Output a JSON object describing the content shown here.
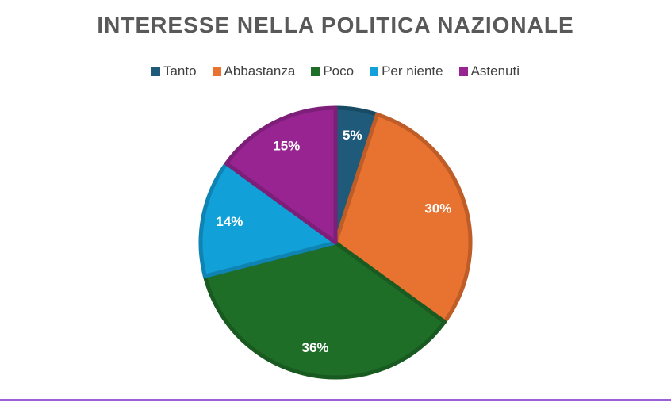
{
  "chart_data": {
    "type": "pie",
    "title": "INTERESSE NELLA POLITICA NAZIONALE",
    "legend_position": "top",
    "categories": [
      "Tanto",
      "Abbastanza",
      "Poco",
      "Per niente",
      "Astenuti"
    ],
    "values": [
      5,
      30,
      36,
      14,
      15
    ],
    "labels": [
      "5%",
      "30%",
      "36%",
      "14%",
      "15%"
    ],
    "colors": [
      "#1f5a7a",
      "#e87230",
      "#1f6e28",
      "#12a0d8",
      "#982492"
    ],
    "label_color": "#ffffff"
  },
  "colors": {
    "title": "#595959",
    "legend_text": "#404040",
    "bottom_rule": "#9b5fd6"
  }
}
